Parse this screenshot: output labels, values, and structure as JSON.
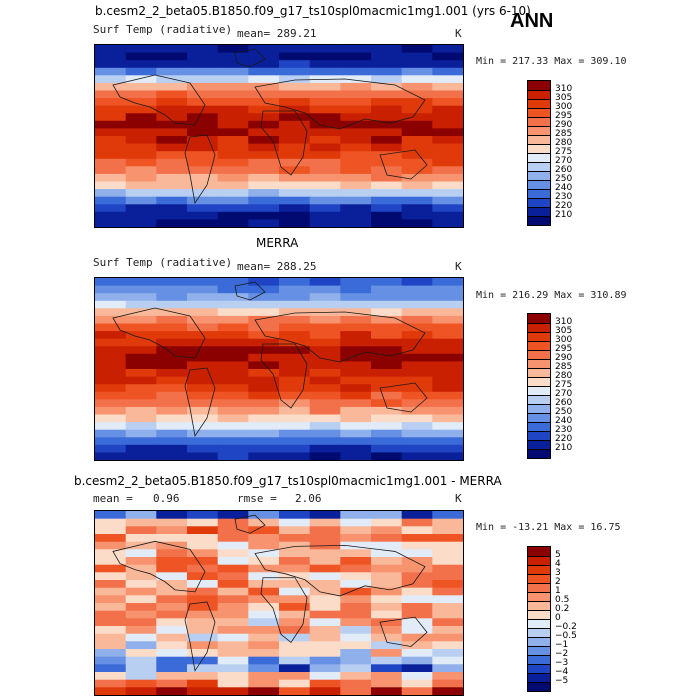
{
  "figure": {
    "season": "ANN"
  },
  "panel1": {
    "title": "b.cesm2_2_beta05.B1850.f09_g17_ts10spl0macmic1mg1.001 (yrs 6-10)",
    "variable": "Surf Temp (radiative)",
    "stat_label": "mean= 289.21",
    "units": "K",
    "minmax": "Min = 217.33 Max = 309.10"
  },
  "panel2": {
    "title": "MERRA",
    "variable": "Surf Temp (radiative)",
    "stat_label": "mean= 288.25",
    "units": "K",
    "minmax": "Min = 216.29 Max = 310.89"
  },
  "panel3": {
    "title": "b.cesm2_2_beta05.B1850.f09_g17_ts10spl0macmic1mg1.001 - MERRA",
    "mean_label": "mean =",
    "mean_value": "0.96",
    "rmse_label": "rmse =",
    "rmse_value": "2.06",
    "units": "K",
    "minmax": "Min = -13.21 Max =  16.75"
  },
  "chart_data": [
    {
      "type": "heatmap",
      "title": "b.cesm2_2_beta05.B1850.f09_g17_ts10spl0macmic1mg1.001 (yrs 6-10)",
      "variable": "Surf Temp (radiative)",
      "units": "K",
      "mean": 289.21,
      "min": 217.33,
      "max": 309.1,
      "colorbar_levels": [
        "310",
        "305",
        "300",
        "295",
        "290",
        "285",
        "280",
        "275",
        "270",
        "260",
        "250",
        "240",
        "230",
        "220",
        "210"
      ],
      "colorbar_colors": [
        "#8b0000",
        "#c82000",
        "#e03a0a",
        "#ef5424",
        "#f3714a",
        "#f7946f",
        "#f9b89a",
        "#fbdcc8",
        "#e2ebf8",
        "#b8cff2",
        "#8fb0ea",
        "#6690e3",
        "#3b6bd8",
        "#1f44c4",
        "#0a1f9a",
        "#000a70"
      ],
      "profile_rows": [
        0.05,
        0.05,
        0.08,
        0.22,
        0.45,
        0.62,
        0.74,
        0.82,
        0.9,
        0.94,
        0.96,
        0.95,
        0.92,
        0.88,
        0.84,
        0.8,
        0.74,
        0.66,
        0.55,
        0.4,
        0.22,
        0.1,
        0.05,
        0.03
      ]
    },
    {
      "type": "heatmap",
      "title": "MERRA",
      "variable": "Surf Temp (radiative)",
      "units": "K",
      "mean": 288.25,
      "min": 216.29,
      "max": 310.89,
      "colorbar_levels": [
        "310",
        "305",
        "300",
        "295",
        "290",
        "285",
        "280",
        "275",
        "270",
        "260",
        "250",
        "240",
        "230",
        "220",
        "210"
      ],
      "colorbar_colors": [
        "#8b0000",
        "#c82000",
        "#e03a0a",
        "#ef5424",
        "#f3714a",
        "#f7946f",
        "#f9b89a",
        "#fbdcc8",
        "#e2ebf8",
        "#b8cff2",
        "#8fb0ea",
        "#6690e3",
        "#3b6bd8",
        "#1f44c4",
        "#0a1f9a",
        "#000a70"
      ],
      "profile_rows": [
        0.18,
        0.25,
        0.32,
        0.42,
        0.58,
        0.7,
        0.78,
        0.86,
        0.92,
        0.95,
        0.97,
        0.96,
        0.94,
        0.9,
        0.86,
        0.8,
        0.74,
        0.66,
        0.56,
        0.44,
        0.3,
        0.18,
        0.1,
        0.06
      ]
    },
    {
      "type": "heatmap",
      "title": "b.cesm2_2_beta05.B1850.f09_g17_ts10spl0macmic1mg1.001 - MERRA",
      "units": "K",
      "mean": 0.96,
      "rmse": 2.06,
      "min": -13.21,
      "max": 16.75,
      "colorbar_levels": [
        "5",
        "4",
        "3",
        "2",
        "1",
        "0.5",
        "0.2",
        "0",
        "−0.2",
        "−0.5",
        "−1",
        "−2",
        "−3",
        "−4",
        "−5"
      ],
      "colorbar_colors": [
        "#8b0000",
        "#c82000",
        "#e03a0a",
        "#ef5424",
        "#f3714a",
        "#f7946f",
        "#f9b89a",
        "#fbdcc8",
        "#e2ebf8",
        "#b8cff2",
        "#8fb0ea",
        "#6690e3",
        "#3b6bd8",
        "#1f44c4",
        "#0a1f9a",
        "#000a70"
      ],
      "profile_rows": [
        0.2,
        0.55,
        0.7,
        0.62,
        0.58,
        0.62,
        0.66,
        0.68,
        0.66,
        0.64,
        0.62,
        0.63,
        0.66,
        0.64,
        0.6,
        0.58,
        0.52,
        0.5,
        0.48,
        0.3,
        0.25,
        0.55,
        0.7,
        0.9
      ]
    }
  ]
}
